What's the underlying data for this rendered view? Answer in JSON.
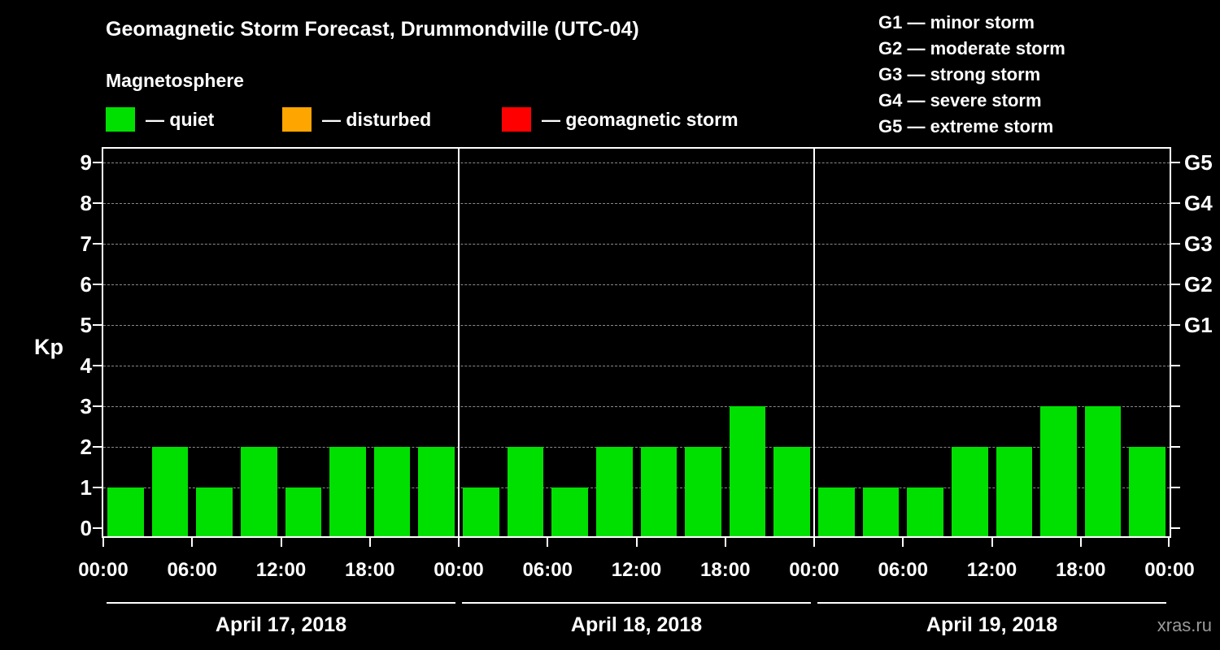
{
  "header": {
    "title": "Geomagnetic Storm Forecast, Drummondville (UTC-04)",
    "subtitle": "Magnetosphere"
  },
  "legend": {
    "items": [
      {
        "label": "— quiet",
        "color": "#00e000"
      },
      {
        "label": "— disturbed",
        "color": "#ffa500"
      },
      {
        "label": "— geomagnetic storm",
        "color": "#ff0000"
      }
    ]
  },
  "storm_scale": {
    "items": [
      "G1 — minor storm",
      "G2 — moderate storm",
      "G3 — strong storm",
      "G4 — severe storm",
      "G5 — extreme storm"
    ]
  },
  "watermark": "xras.ru",
  "chart_data": {
    "type": "bar",
    "title": "Geomagnetic Storm Forecast, Drummondville (UTC-04)",
    "ylabel": "Kp",
    "ylim": [
      0,
      9.4
    ],
    "yticks": [
      0,
      1,
      2,
      3,
      4,
      5,
      6,
      7,
      8,
      9
    ],
    "grid": "dashed horizontal lines at Kp 1-9",
    "legend_position": "top",
    "right_axis": [
      {
        "kp": 5,
        "label": "G1"
      },
      {
        "kp": 6,
        "label": "G2"
      },
      {
        "kp": 7,
        "label": "G3"
      },
      {
        "kp": 8,
        "label": "G4"
      },
      {
        "kp": 9,
        "label": "G5"
      }
    ],
    "bar_color_quiet": "#00e000",
    "interval_hours": 3,
    "xticks_per_day": [
      "00:00",
      "06:00",
      "12:00",
      "18:00"
    ],
    "final_xtick": "00:00",
    "days": [
      {
        "date": "April 17, 2018",
        "kp_values": [
          1,
          2,
          1,
          2,
          1,
          2,
          2,
          2
        ]
      },
      {
        "date": "April 18, 2018",
        "kp_values": [
          1,
          2,
          1,
          2,
          2,
          2,
          3,
          2
        ]
      },
      {
        "date": "April 19, 2018",
        "kp_values": [
          1,
          1,
          1,
          2,
          2,
          3,
          3,
          2
        ]
      }
    ]
  }
}
